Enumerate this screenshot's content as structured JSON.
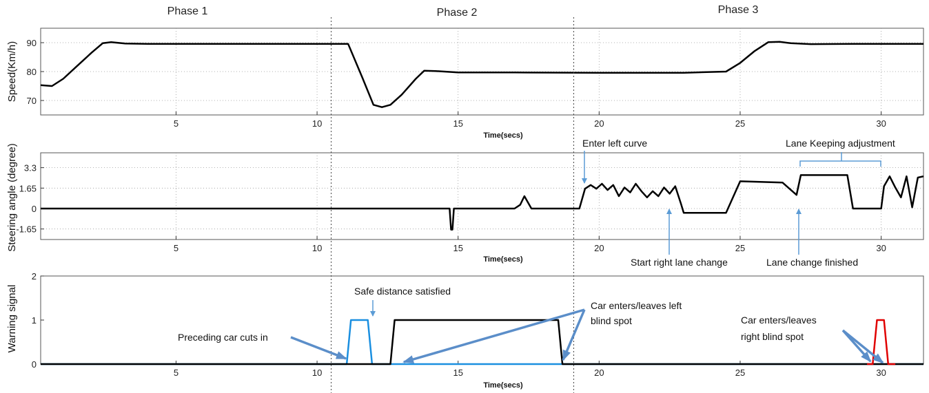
{
  "chart_data": [
    {
      "type": "line",
      "ylabel": "Speed(Km/h)",
      "xlabel": "",
      "xlim": [
        0.2,
        31.5
      ],
      "ylim": [
        65,
        95
      ],
      "xticks": [
        5,
        10,
        15,
        20,
        25,
        30
      ],
      "yticks": [
        70,
        80,
        90
      ],
      "grid": true,
      "series": [
        {
          "color": "#000000",
          "x": [
            0.2,
            0.6,
            1.0,
            1.5,
            2.0,
            2.4,
            2.7,
            3.2,
            4.0,
            6.0,
            8.0,
            10.0,
            11.1,
            11.6,
            12.0,
            12.3,
            12.6,
            13.0,
            13.5,
            13.8,
            14.2,
            15.0,
            17.0,
            20.0,
            23.0,
            24.5,
            25.0,
            25.5,
            26.0,
            26.4,
            26.8,
            27.5,
            29.0,
            31.5
          ],
          "values": [
            75.3,
            75.0,
            77.5,
            82.0,
            86.5,
            89.8,
            90.2,
            89.7,
            89.6,
            89.6,
            89.6,
            89.6,
            89.6,
            78.0,
            68.5,
            67.7,
            68.5,
            72.0,
            77.5,
            80.3,
            80.2,
            79.7,
            79.7,
            79.6,
            79.6,
            80.0,
            83.0,
            87.0,
            90.2,
            90.3,
            89.8,
            89.5,
            89.6,
            89.6
          ]
        }
      ]
    },
    {
      "type": "line",
      "ylabel": "Steering angle (degree)",
      "xlabel": "Time(secs)",
      "xlim": [
        0.2,
        31.5
      ],
      "ylim": [
        -2.5,
        4.5
      ],
      "xticks": [
        5,
        10,
        15,
        20,
        25,
        30
      ],
      "yticks": [
        -1.65,
        0,
        1.65,
        3.3
      ],
      "ytick_labels": [
        "-1.65",
        "0",
        "1.65",
        "3.3"
      ],
      "grid": true,
      "series": [
        {
          "color": "#000000",
          "x": [
            0.2,
            14.7,
            14.75,
            14.8,
            14.85,
            17.0,
            17.2,
            17.35,
            17.45,
            17.6,
            17.8,
            19.3,
            19.5,
            19.7,
            19.9,
            20.1,
            20.3,
            20.5,
            20.7,
            20.9,
            21.1,
            21.3,
            21.5,
            21.7,
            21.9,
            22.1,
            22.3,
            22.5,
            22.7,
            22.9,
            23.0,
            24.5,
            25.0,
            26.5,
            27.0,
            27.15,
            27.3,
            28.5,
            28.8,
            29.0,
            29.2,
            30.0,
            30.1,
            30.3,
            30.5,
            30.7,
            30.9,
            31.1,
            31.3,
            31.5
          ],
          "values": [
            0,
            0,
            -1.7,
            -1.7,
            0,
            0,
            0.3,
            1.0,
            0.6,
            0,
            0,
            0,
            1.6,
            1.9,
            1.6,
            2.0,
            1.5,
            1.9,
            1.0,
            1.7,
            1.3,
            2.0,
            1.4,
            0.9,
            1.4,
            1.0,
            1.7,
            1.2,
            1.8,
            0.4,
            -0.35,
            -0.35,
            2.2,
            2.1,
            1.1,
            2.7,
            2.7,
            2.7,
            2.7,
            0,
            0,
            0,
            1.8,
            2.6,
            1.7,
            0.9,
            2.6,
            0.1,
            2.5,
            2.6
          ]
        }
      ]
    },
    {
      "type": "line",
      "ylabel": "Warning signal",
      "xlabel": "Time(secs)",
      "xlim": [
        0.2,
        31.5
      ],
      "ylim": [
        0,
        2
      ],
      "xticks": [
        5,
        10,
        15,
        20,
        25,
        30
      ],
      "yticks": [
        0,
        1,
        2
      ],
      "grid": false,
      "series": [
        {
          "color": "#1a8fe0",
          "x": [
            0.2,
            11.05,
            11.2,
            11.8,
            11.95,
            31.5
          ],
          "values": [
            0,
            0,
            1,
            1,
            0,
            0
          ]
        },
        {
          "color": "#000000",
          "x": [
            0.2,
            12.6,
            12.75,
            18.55,
            18.7,
            31.5
          ],
          "values": [
            0,
            0,
            1,
            1,
            0,
            0
          ]
        },
        {
          "color": "#e00000",
          "x": [
            29.5,
            29.7,
            29.85,
            30.1,
            30.25,
            30.5
          ],
          "values": [
            0,
            0,
            1,
            1,
            0,
            0
          ]
        }
      ]
    }
  ],
  "phases": [
    {
      "label": "Phase 1",
      "x": 5.8
    },
    {
      "label": "Phase 2",
      "x": 14.8
    },
    {
      "label": "Phase 3",
      "x": 26.0
    }
  ],
  "phase_dividers": [
    10.5,
    19.1
  ],
  "annotations": {
    "enter_left_curve": "Enter left curve",
    "lane_keeping": "Lane Keeping adjustment",
    "start_right_lane_change": "Start right lane change",
    "lane_change_finished": "Lane change finished",
    "safe_distance": "Safe distance satisfied",
    "preceding_car": "Preceding car cuts in",
    "left_blind_1": "Car enters/leaves left",
    "left_blind_2": "blind spot",
    "right_blind_1": "Car enters/leaves",
    "right_blind_2": "right blind spot"
  },
  "colors": {
    "annotation_arrow": "#5b8ec9",
    "bracket": "#5b9bd5"
  }
}
